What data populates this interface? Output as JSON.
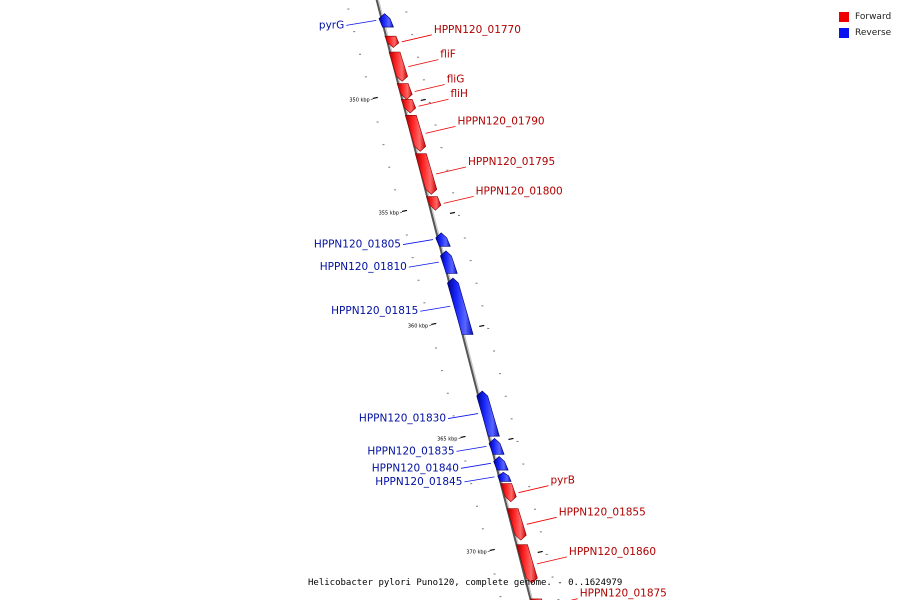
{
  "caption": "Helicobacter pylori Puno120, complete genome. - 0..1624979",
  "legend": [
    {
      "label": "Forward",
      "color": "#ee0000"
    },
    {
      "label": "Reverse",
      "color": "#0a14ee"
    }
  ],
  "colors": {
    "forward": "#ee0000",
    "reverse": "#0a14ee",
    "axis": "#888888"
  },
  "ticks": [
    {
      "label": "350 kbp",
      "pos": 350
    },
    {
      "label": "355 kbp",
      "pos": 355
    },
    {
      "label": "360 kbp",
      "pos": 360
    },
    {
      "label": "365 kbp",
      "pos": 365
    },
    {
      "label": "370 kbp",
      "pos": 370
    }
  ],
  "genes": [
    {
      "name": "pyrG",
      "strand": "reverse",
      "start": 346.2,
      "end": 346.8
    },
    {
      "name": "HPPN120_01770",
      "strand": "forward",
      "start": 347.2,
      "end": 347.7
    },
    {
      "name": "fliF",
      "strand": "forward",
      "start": 347.9,
      "end": 349.2
    },
    {
      "name": "fliG",
      "strand": "forward",
      "start": 349.3,
      "end": 350.0
    },
    {
      "name": "fliH",
      "strand": "forward",
      "start": 350.0,
      "end": 350.6
    },
    {
      "name": "HPPN120_01790",
      "strand": "forward",
      "start": 350.7,
      "end": 352.3
    },
    {
      "name": "HPPN120_01795",
      "strand": "forward",
      "start": 352.4,
      "end": 354.2
    },
    {
      "name": "HPPN120_01800",
      "strand": "forward",
      "start": 354.3,
      "end": 354.9
    },
    {
      "name": "HPPN120_01805",
      "strand": "reverse",
      "start": 355.9,
      "end": 356.5
    },
    {
      "name": "HPPN120_01810",
      "strand": "reverse",
      "start": 356.7,
      "end": 357.7
    },
    {
      "name": "HPPN120_01815",
      "strand": "reverse",
      "start": 357.9,
      "end": 360.4
    },
    {
      "name": "HPPN120_01830",
      "strand": "reverse",
      "start": 362.9,
      "end": 364.9
    },
    {
      "name": "HPPN120_01835",
      "strand": "reverse",
      "start": 365.0,
      "end": 365.7
    },
    {
      "name": "HPPN120_01840",
      "strand": "reverse",
      "start": 365.8,
      "end": 366.4
    },
    {
      "name": "HPPN120_01845",
      "strand": "reverse",
      "start": 366.5,
      "end": 366.9
    },
    {
      "name": "pyrB",
      "strand": "forward",
      "start": 367.0,
      "end": 367.8
    },
    {
      "name": "HPPN120_01855",
      "strand": "forward",
      "start": 368.1,
      "end": 369.5
    },
    {
      "name": "HPPN120_01860",
      "strand": "forward",
      "start": 369.7,
      "end": 371.4
    },
    {
      "name": "HPPN120_01875",
      "strand": "forward",
      "start": 372.1,
      "end": 372.7
    }
  ]
}
